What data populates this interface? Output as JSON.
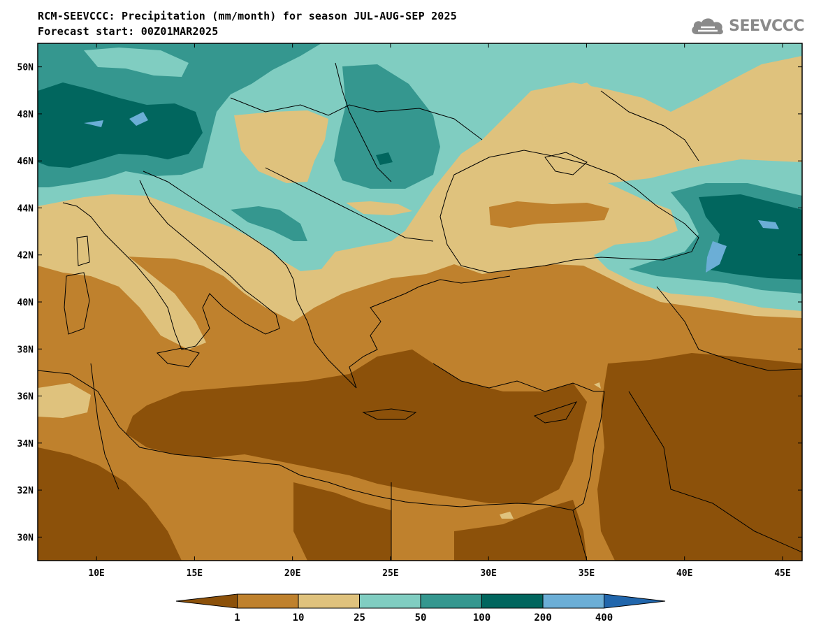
{
  "header": {
    "title_line1": "RCM-SEEVCCC: Precipitation (mm/month) for season JUL-AUG-SEP 2025",
    "title_line2": "Forecast start: 00Z01MAR2025"
  },
  "logo": {
    "text": "SEEVCCC",
    "icon": "cloud-icon",
    "color": "#8a8a8a"
  },
  "map": {
    "type": "filled-contour map",
    "lon_range": [
      7,
      46
    ],
    "lat_range": [
      29,
      51
    ],
    "lon_ticks": [
      {
        "value": 10,
        "label": "10E"
      },
      {
        "value": 15,
        "label": "15E"
      },
      {
        "value": 20,
        "label": "20E"
      },
      {
        "value": 25,
        "label": "25E"
      },
      {
        "value": 30,
        "label": "30E"
      },
      {
        "value": 35,
        "label": "35E"
      },
      {
        "value": 40,
        "label": "40E"
      },
      {
        "value": 45,
        "label": "45E"
      }
    ],
    "lat_ticks": [
      {
        "value": 30,
        "label": "30N"
      },
      {
        "value": 32,
        "label": "32N"
      },
      {
        "value": 34,
        "label": "34N"
      },
      {
        "value": 36,
        "label": "36N"
      },
      {
        "value": 38,
        "label": "38N"
      },
      {
        "value": 40,
        "label": "40N"
      },
      {
        "value": 42,
        "label": "42N"
      },
      {
        "value": 44,
        "label": "44N"
      },
      {
        "value": 46,
        "label": "46N"
      },
      {
        "value": 48,
        "label": "48N"
      },
      {
        "value": 50,
        "label": "50N"
      }
    ]
  },
  "colorbar": {
    "colors": [
      "#8c510a",
      "#bf812d",
      "#dfc27d",
      "#80cdc1",
      "#35978f",
      "#01665e",
      "#6baed6",
      "#2166ac"
    ],
    "labels": [
      "1",
      "10",
      "25",
      "50",
      "100",
      "200",
      "400"
    ]
  }
}
